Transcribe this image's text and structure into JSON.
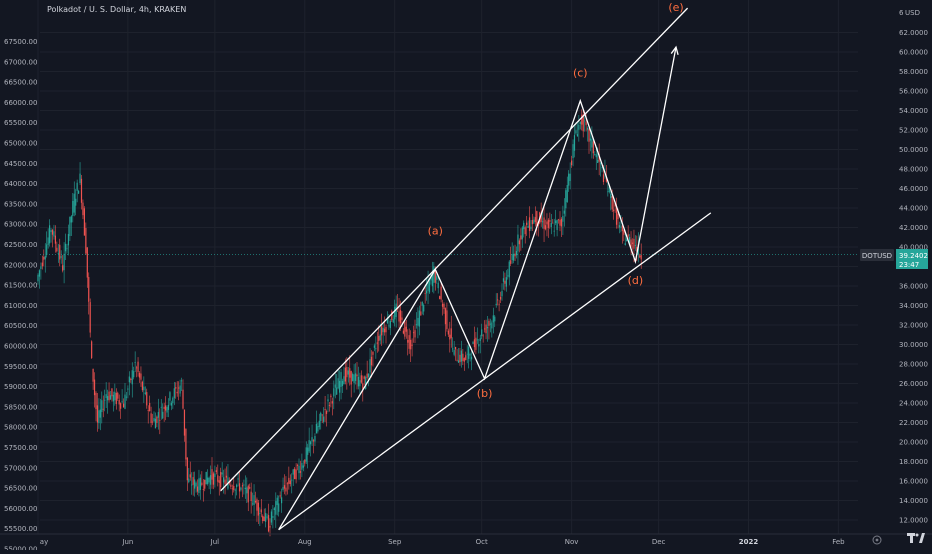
{
  "header": {
    "title": "Polkadot / U. S. Dollar, 4h, KRAKEN"
  },
  "left_axis": {
    "labels": [
      "67500.00",
      "67000.00",
      "66500.00",
      "66000.00",
      "65500.00",
      "65000.00",
      "64500.00",
      "64000.00",
      "63500.00",
      "63000.00",
      "62500.00",
      "62000.00",
      "61500.00",
      "61000.00",
      "60500.00",
      "60000.00",
      "59500.00",
      "59000.00",
      "58500.00",
      "58000.00",
      "57500.00",
      "57000.00",
      "56500.00",
      "56000.00",
      "55500.00",
      "55000.00"
    ]
  },
  "right_axis": {
    "currency": "USD",
    "labels": [
      "62.0000",
      "60.0000",
      "58.0000",
      "56.0000",
      "54.0000",
      "52.0000",
      "50.0000",
      "48.0000",
      "46.0000",
      "44.0000",
      "42.0000",
      "40.0000",
      "38.0000",
      "36.0000",
      "34.0000",
      "32.0000",
      "30.0000",
      "28.0000",
      "26.0000",
      "24.0000",
      "22.0000",
      "20.0000",
      "18.0000",
      "16.0000",
      "14.0000",
      "12.0000"
    ],
    "top_partial": "6"
  },
  "price_badge": {
    "symbol": "DOTUSD",
    "price": "39.2402",
    "countdown": "23:47",
    "color": "#26a69a"
  },
  "x_axis": {
    "labels": [
      "ay",
      "Jun",
      "Jul",
      "Aug",
      "Sep",
      "Oct",
      "Nov",
      "Dec",
      "2022",
      "Feb"
    ],
    "corner_icon": "gear-icon"
  },
  "annotations": [
    {
      "id": "a",
      "label": "(a)",
      "x": "2021-09-15",
      "y": 41.3
    },
    {
      "id": "b",
      "label": "(b)",
      "x": "2021-10-02",
      "y": 24.6
    },
    {
      "id": "c",
      "label": "(c)",
      "x": "2021-11-04",
      "y": 57.5
    },
    {
      "id": "d",
      "label": "(d)",
      "x": "2021-11-23",
      "y": 36.2
    },
    {
      "id": "e",
      "label": "(e)",
      "x": "2021-12-07",
      "y": 64.2
    }
  ],
  "colors": {
    "up": "#26a69a",
    "down": "#ef5350",
    "annotation": "#ff6e40",
    "drawing": "#ffffff",
    "background": "#131722"
  },
  "chart_data": {
    "type": "candlestick",
    "title": "Polkadot / U. S. Dollar, 4h, KRAKEN",
    "interval": "4h",
    "y_unit": "USD",
    "ylim": [
      11,
      64.5
    ],
    "xlim": [
      "2021-05-01",
      "2022-02-28"
    ],
    "last_price": 39.2402,
    "price_path": [
      {
        "x": "2021-05-01",
        "y": 36.5
      },
      {
        "x": "2021-05-06",
        "y": 42.0
      },
      {
        "x": "2021-05-10",
        "y": 38.0
      },
      {
        "x": "2021-05-14",
        "y": 45.0
      },
      {
        "x": "2021-05-16",
        "y": 47.0
      },
      {
        "x": "2021-05-18",
        "y": 40.0
      },
      {
        "x": "2021-05-20",
        "y": 28.0
      },
      {
        "x": "2021-05-22",
        "y": 22.0
      },
      {
        "x": "2021-05-25",
        "y": 25.0
      },
      {
        "x": "2021-05-31",
        "y": 24.0
      },
      {
        "x": "2021-06-04",
        "y": 28.0
      },
      {
        "x": "2021-06-10",
        "y": 22.0
      },
      {
        "x": "2021-06-15",
        "y": 24.0
      },
      {
        "x": "2021-06-20",
        "y": 26.0
      },
      {
        "x": "2021-06-22",
        "y": 16.0
      },
      {
        "x": "2021-06-26",
        "y": 15.5
      },
      {
        "x": "2021-06-30",
        "y": 16.5
      },
      {
        "x": "2021-07-05",
        "y": 16.0
      },
      {
        "x": "2021-07-10",
        "y": 15.5
      },
      {
        "x": "2021-07-15",
        "y": 14.0
      },
      {
        "x": "2021-07-20",
        "y": 11.5
      },
      {
        "x": "2021-07-25",
        "y": 15.0
      },
      {
        "x": "2021-08-01",
        "y": 18.0
      },
      {
        "x": "2021-08-08",
        "y": 23.0
      },
      {
        "x": "2021-08-15",
        "y": 27.0
      },
      {
        "x": "2021-08-22",
        "y": 26.0
      },
      {
        "x": "2021-08-27",
        "y": 31.0
      },
      {
        "x": "2021-09-02",
        "y": 33.5
      },
      {
        "x": "2021-09-07",
        "y": 30.0
      },
      {
        "x": "2021-09-12",
        "y": 35.0
      },
      {
        "x": "2021-09-15",
        "y": 37.5
      },
      {
        "x": "2021-09-18",
        "y": 34.0
      },
      {
        "x": "2021-09-22",
        "y": 29.0
      },
      {
        "x": "2021-09-26",
        "y": 28.5
      },
      {
        "x": "2021-10-01",
        "y": 31.0
      },
      {
        "x": "2021-10-05",
        "y": 32.5
      },
      {
        "x": "2021-10-10",
        "y": 37.0
      },
      {
        "x": "2021-10-15",
        "y": 41.5
      },
      {
        "x": "2021-10-20",
        "y": 43.0
      },
      {
        "x": "2021-10-25",
        "y": 42.0
      },
      {
        "x": "2021-10-29",
        "y": 42.5
      },
      {
        "x": "2021-11-03",
        "y": 52.0
      },
      {
        "x": "2021-11-05",
        "y": 53.0
      },
      {
        "x": "2021-11-09",
        "y": 50.0
      },
      {
        "x": "2021-11-13",
        "y": 47.0
      },
      {
        "x": "2021-11-16",
        "y": 44.0
      },
      {
        "x": "2021-11-19",
        "y": 41.0
      },
      {
        "x": "2021-11-23",
        "y": 40.5
      },
      {
        "x": "2021-11-25",
        "y": 39.24
      }
    ],
    "drawings": [
      {
        "name": "channel-upper-line",
        "points": [
          {
            "x": "2021-07-03",
            "y": 15.0
          },
          {
            "x": "2021-12-11",
            "y": 64.5
          }
        ]
      },
      {
        "name": "channel-lower-line",
        "points": [
          {
            "x": "2021-07-23",
            "y": 11.0
          },
          {
            "x": "2021-12-19",
            "y": 43.5
          }
        ]
      },
      {
        "name": "wave-path",
        "points": [
          {
            "x": "2021-07-23",
            "y": 11.0
          },
          {
            "x": "2021-09-15",
            "y": 37.7
          },
          {
            "x": "2021-10-02",
            "y": 26.5
          },
          {
            "x": "2021-11-04",
            "y": 55.0
          },
          {
            "x": "2021-11-23",
            "y": 38.5
          },
          {
            "x": "2021-12-07",
            "y": 60.5
          }
        ]
      }
    ]
  }
}
